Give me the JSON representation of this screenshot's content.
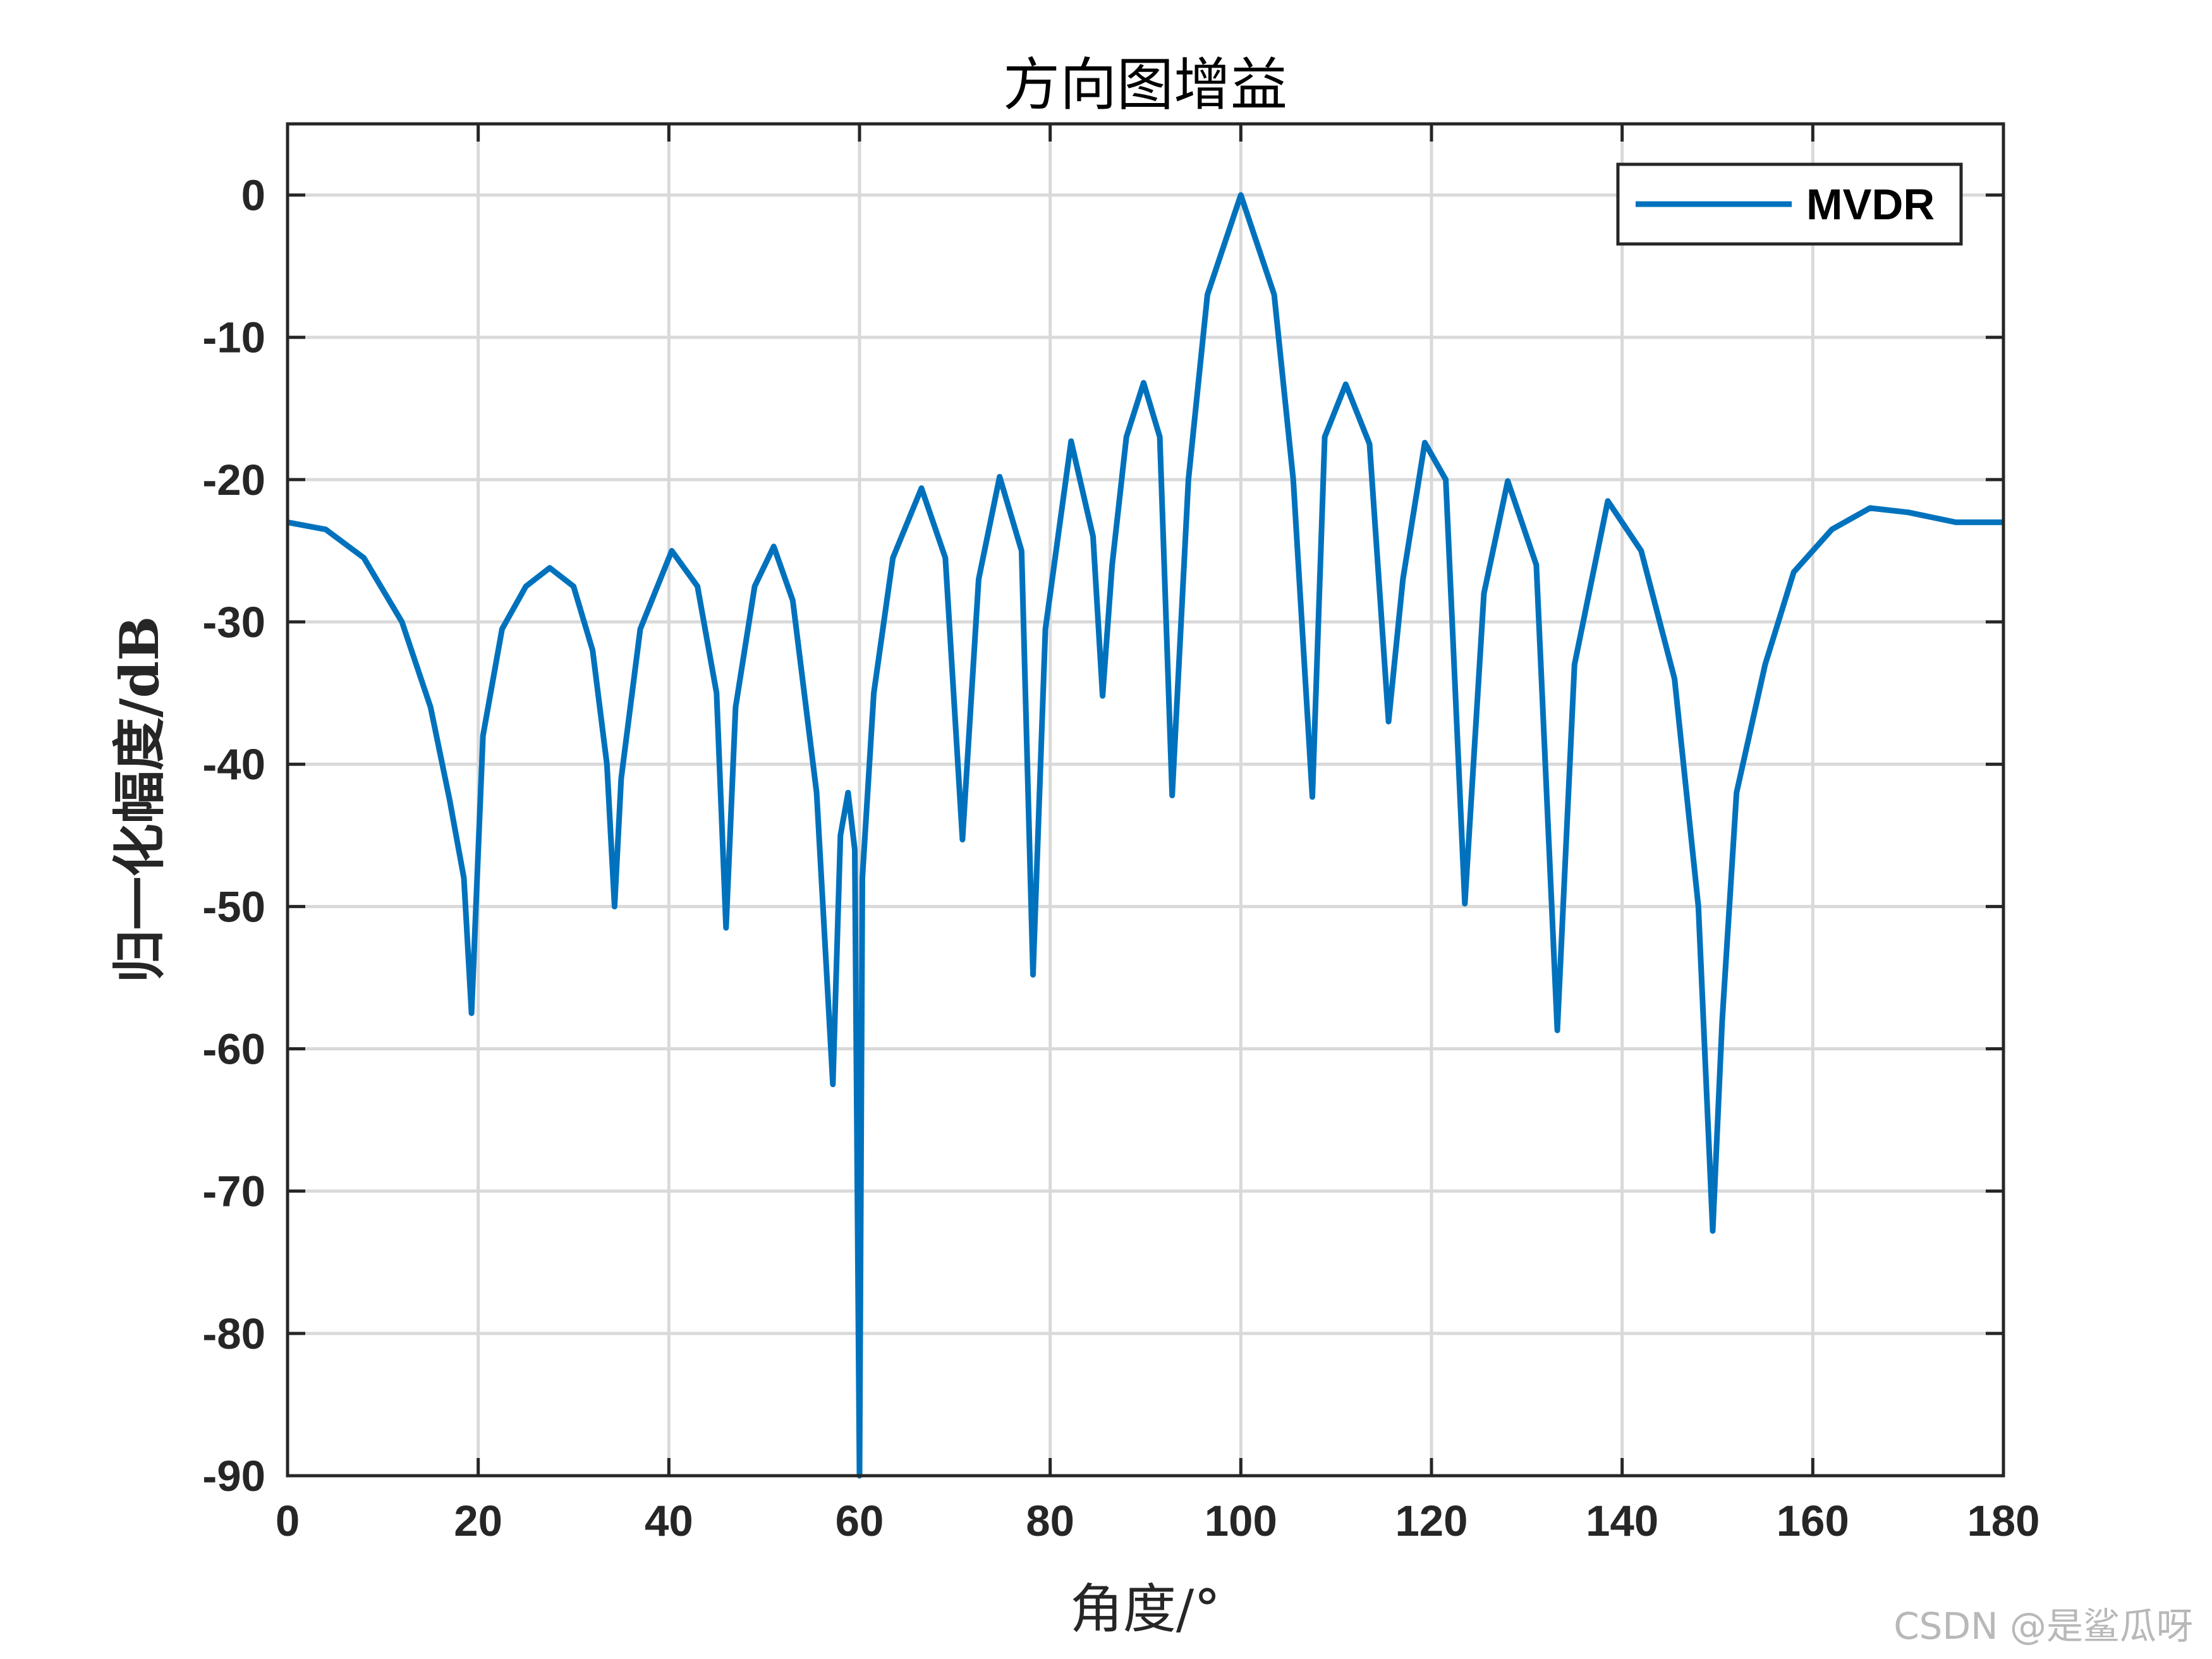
{
  "chart_data": {
    "type": "line",
    "title": "方向图增益",
    "xlabel": "角度/°",
    "ylabel": "归一化幅度/dB",
    "xlim": [
      0,
      180
    ],
    "ylim": [
      -90,
      5
    ],
    "xticks": [
      0,
      20,
      40,
      60,
      80,
      100,
      120,
      140,
      160,
      180
    ],
    "yticks": [
      0,
      -10,
      -20,
      -30,
      -40,
      -50,
      -60,
      -70,
      -80,
      -90
    ],
    "grid": true,
    "legend_position": "top-right",
    "series": [
      {
        "name": "MVDR",
        "color": "#0072BD",
        "x": [
          0,
          4,
          8,
          12,
          15,
          17,
          18.5,
          19.3,
          20.5,
          22.5,
          25,
          27.5,
          30,
          32,
          33.5,
          34.3,
          35,
          37,
          40.3,
          43,
          45,
          46,
          47,
          49,
          51,
          53,
          55.5,
          57.2,
          58,
          58.8,
          59.5,
          60,
          60.3,
          61.5,
          63.5,
          66.5,
          69,
          70.8,
          72.5,
          74.7,
          77,
          78.2,
          79.5,
          82.2,
          84.5,
          85.5,
          86.5,
          88,
          89.8,
          91.5,
          92.8,
          94.5,
          96.5,
          100,
          103.5,
          105.5,
          107.5,
          108.8,
          111,
          113.5,
          115.5,
          117,
          119.3,
          121.5,
          123.5,
          125.5,
          128,
          131,
          133.2,
          135,
          138.5,
          142,
          145.5,
          148,
          149.5,
          150.5,
          152,
          155,
          158,
          162,
          166,
          170,
          175,
          180
        ],
        "y": [
          -23,
          -23.5,
          -25.5,
          -30,
          -36,
          -42.5,
          -48,
          -57.5,
          -38,
          -30.5,
          -27.5,
          -26.2,
          -27.5,
          -32,
          -40,
          -50,
          -41,
          -30.5,
          -25,
          -27.5,
          -35,
          -51.5,
          -36,
          -27.5,
          -24.7,
          -28.5,
          -42,
          -62.5,
          -45,
          -42,
          -46,
          -90,
          -48,
          -35,
          -25.5,
          -20.6,
          -25.5,
          -45.3,
          -27,
          -19.8,
          -25,
          -54.8,
          -30.5,
          -17.3,
          -24,
          -35.2,
          -26,
          -17,
          -13.2,
          -17,
          -42.2,
          -20,
          -7,
          0,
          -7,
          -20,
          -42.3,
          -17,
          -13.3,
          -17.5,
          -37,
          -27,
          -17.4,
          -20,
          -49.8,
          -28,
          -20.1,
          -26,
          -58.7,
          -33,
          -21.5,
          -25,
          -34,
          -50,
          -72.8,
          -58,
          -42,
          -33,
          -26.5,
          -23.5,
          -22,
          -22.3,
          -23,
          -23
        ]
      }
    ]
  },
  "watermark": "CSDN @是鲨瓜呀"
}
